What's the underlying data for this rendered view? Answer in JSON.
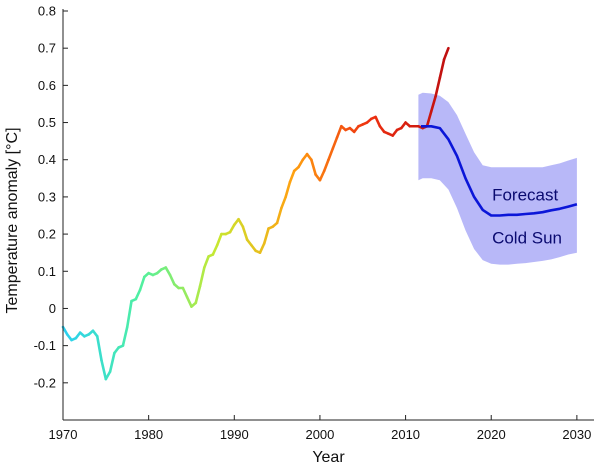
{
  "chart_data": {
    "type": "line",
    "xlabel": "Year",
    "ylabel": "Temperature anomaly [°C]",
    "xlim": [
      1970,
      2032
    ],
    "ylim": [
      -0.3,
      0.8
    ],
    "xticks": [
      1970,
      1980,
      1990,
      2000,
      2010,
      2020,
      2030
    ],
    "yticks": [
      -0.2,
      -0.1,
      0,
      0.1,
      0.2,
      0.3,
      0.4,
      0.5,
      0.6,
      0.7,
      0.8
    ],
    "grid": false,
    "annotations": [
      {
        "text": "Forecast",
        "x": 2020.1,
        "y": 0.29
      },
      {
        "text": "Cold Sun",
        "x": 2020.1,
        "y": 0.175
      }
    ],
    "series": [
      {
        "kind": "observed",
        "color_scale": [
          "#2ad0f0",
          "#50f0a0",
          "#c8e830",
          "#ffa010",
          "#ee3010",
          "#c01010"
        ],
        "x": [
          1970.0,
          1970.5,
          1971.0,
          1971.5,
          1972.0,
          1972.5,
          1973.0,
          1973.5,
          1974.0,
          1974.5,
          1975.0,
          1975.5,
          1976.0,
          1976.5,
          1977.0,
          1977.5,
          1978.0,
          1978.5,
          1979.0,
          1979.5,
          1980.0,
          1980.5,
          1981.0,
          1981.5,
          1982.0,
          1982.5,
          1983.0,
          1983.5,
          1984.0,
          1984.5,
          1985.0,
          1985.5,
          1986.0,
          1986.5,
          1987.0,
          1987.5,
          1988.0,
          1988.5,
          1989.0,
          1989.5,
          1990.0,
          1990.5,
          1991.0,
          1991.5,
          1992.0,
          1992.5,
          1993.0,
          1993.5,
          1994.0,
          1994.5,
          1995.0,
          1995.5,
          1996.0,
          1996.5,
          1997.0,
          1997.5,
          1998.0,
          1998.5,
          1999.0,
          1999.5,
          2000.0,
          2000.5,
          2001.0,
          2001.5,
          2002.0,
          2002.5,
          2003.0,
          2003.5,
          2004.0,
          2004.5,
          2005.0,
          2005.5,
          2006.0,
          2006.5,
          2007.0,
          2007.5,
          2008.0,
          2008.5,
          2009.0,
          2009.5,
          2010.0,
          2010.5,
          2011.0,
          2011.5,
          2012.0,
          2012.5,
          2013.0,
          2013.5,
          2014.0,
          2014.5,
          2015.0
        ],
        "y": [
          -0.05,
          -0.07,
          -0.085,
          -0.08,
          -0.065,
          -0.075,
          -0.07,
          -0.06,
          -0.075,
          -0.14,
          -0.19,
          -0.17,
          -0.12,
          -0.105,
          -0.1,
          -0.05,
          0.02,
          0.025,
          0.05,
          0.085,
          0.095,
          0.09,
          0.095,
          0.105,
          0.11,
          0.09,
          0.065,
          0.055,
          0.055,
          0.03,
          0.005,
          0.015,
          0.06,
          0.11,
          0.14,
          0.145,
          0.17,
          0.2,
          0.2,
          0.205,
          0.225,
          0.24,
          0.22,
          0.185,
          0.17,
          0.155,
          0.15,
          0.175,
          0.215,
          0.22,
          0.23,
          0.27,
          0.3,
          0.34,
          0.37,
          0.38,
          0.4,
          0.415,
          0.4,
          0.36,
          0.345,
          0.37,
          0.4,
          0.43,
          0.46,
          0.49,
          0.48,
          0.485,
          0.475,
          0.49,
          0.495,
          0.5,
          0.51,
          0.515,
          0.49,
          0.475,
          0.47,
          0.465,
          0.48,
          0.485,
          0.5,
          0.49,
          0.49,
          0.49,
          0.485,
          0.49,
          0.53,
          0.57,
          0.62,
          0.67,
          0.7
        ]
      },
      {
        "kind": "forecast",
        "color": "#0b16d8",
        "x": [
          2011.8,
          2013.0,
          2014.0,
          2015.0,
          2016.0,
          2017.0,
          2018.0,
          2019.0,
          2020.0,
          2021.0,
          2022.0,
          2023.0,
          2024.0,
          2025.0,
          2026.0,
          2027.0,
          2028.0,
          2029.0,
          2030.0
        ],
        "y": [
          0.49,
          0.49,
          0.485,
          0.455,
          0.41,
          0.35,
          0.3,
          0.265,
          0.25,
          0.25,
          0.252,
          0.252,
          0.254,
          0.256,
          0.259,
          0.264,
          0.268,
          0.274,
          0.28
        ]
      }
    ],
    "bands": [
      {
        "name": "",
        "color": "#b8b8f8",
        "x": [
          2011.5,
          2012.0,
          2013.0,
          2014.0,
          2015.0,
          2016.0,
          2017.0,
          2018.0,
          2019.0,
          2020.0,
          2021.0,
          2022.0,
          2023.0,
          2024.0,
          2025.0,
          2026.0,
          2027.0,
          2028.0,
          2029.0,
          2030.0
        ],
        "upper": [
          0.575,
          0.58,
          0.578,
          0.572,
          0.555,
          0.52,
          0.47,
          0.42,
          0.385,
          0.38,
          0.38,
          0.38,
          0.38,
          0.38,
          0.38,
          0.38,
          0.385,
          0.39,
          0.398,
          0.405
        ],
        "lower": [
          0.345,
          0.35,
          0.35,
          0.345,
          0.32,
          0.27,
          0.21,
          0.16,
          0.13,
          0.12,
          0.118,
          0.118,
          0.12,
          0.122,
          0.125,
          0.128,
          0.132,
          0.138,
          0.145,
          0.15
        ]
      }
    ]
  }
}
